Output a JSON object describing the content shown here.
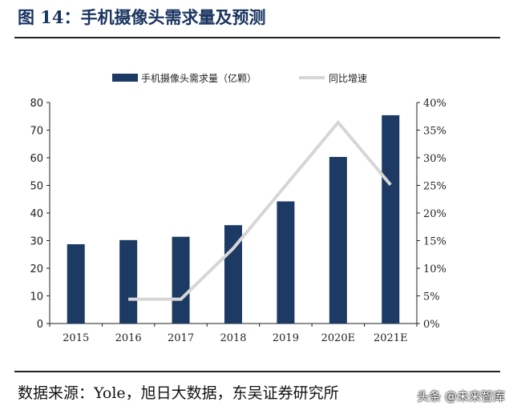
{
  "title": "图 14：手机摄像头需求量及预测",
  "source": "数据来源：Yole，旭日大数据，东吴证券研究所",
  "watermark": "头条 @未来智库",
  "chart_data": {
    "type": "bar+line",
    "categories": [
      "2015",
      "2016",
      "2017",
      "2018",
      "2019",
      "2020E",
      "2021E"
    ],
    "series": [
      {
        "name": "手机摄像头需求量（亿颗）",
        "type": "bar",
        "axis": "left",
        "color": "#1c3a63",
        "values": [
          28.7,
          30.2,
          31.4,
          35.6,
          44.2,
          60.3,
          75.4
        ]
      },
      {
        "name": "同比增速",
        "type": "line",
        "axis": "right",
        "color": "#d6d6d6",
        "values": [
          null,
          4.4,
          4.4,
          13.6,
          25,
          36.4,
          25.1
        ]
      }
    ],
    "ylim": [
      0,
      80
    ],
    "yticks": [
      "0",
      "10",
      "20",
      "30",
      "40",
      "50",
      "60",
      "70",
      "80"
    ],
    "y2lim": [
      0,
      40
    ],
    "y2ticks": [
      "0%",
      "5%",
      "10%",
      "15%",
      "20%",
      "25%",
      "30%",
      "35%",
      "40%"
    ],
    "legend": "top",
    "grid": false
  }
}
